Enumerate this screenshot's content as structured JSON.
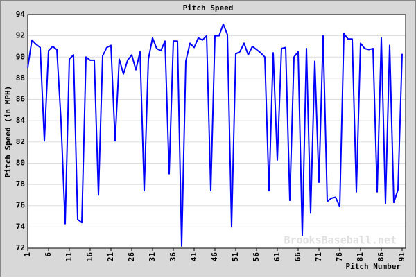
{
  "chart_data": {
    "type": "line",
    "title": "Pitch Speed",
    "x_label": "Pitch Number",
    "y_label": "Pitch Speed (in MPH)",
    "watermark": "BrooksBaseball.net",
    "x": [
      1,
      2,
      3,
      4,
      5,
      6,
      7,
      8,
      9,
      10,
      11,
      12,
      13,
      14,
      15,
      16,
      17,
      18,
      19,
      20,
      21,
      22,
      23,
      24,
      25,
      26,
      27,
      28,
      29,
      30,
      31,
      32,
      33,
      34,
      35,
      36,
      37,
      38,
      39,
      40,
      41,
      42,
      43,
      44,
      45,
      46,
      47,
      48,
      49,
      50,
      51,
      52,
      53,
      54,
      55,
      56,
      57,
      58,
      59,
      60,
      61,
      62,
      63,
      64,
      65,
      66,
      67,
      68,
      69,
      70,
      71,
      72,
      73,
      74,
      75,
      76,
      77,
      78,
      79,
      80,
      81,
      82,
      83,
      84,
      85,
      86,
      87,
      88,
      89,
      90,
      91
    ],
    "series": [
      {
        "name": "Pitch Speed",
        "color": "#0000ff",
        "values": [
          89.0,
          91.6,
          91.2,
          90.9,
          82.1,
          90.6,
          91.0,
          90.7,
          84.0,
          74.3,
          89.8,
          90.2,
          74.7,
          74.4,
          90.0,
          89.7,
          89.7,
          77.0,
          90.1,
          90.9,
          91.1,
          82.1,
          89.8,
          88.4,
          89.7,
          90.2,
          88.8,
          90.5,
          77.4,
          89.8,
          91.8,
          90.8,
          90.6,
          91.5,
          79.0,
          91.5,
          91.5,
          72.2,
          89.6,
          91.3,
          90.9,
          91.8,
          91.6,
          92.0,
          77.4,
          92.0,
          92.0,
          93.1,
          92.1,
          74.0,
          90.3,
          90.5,
          91.3,
          90.2,
          91.0,
          90.7,
          90.4,
          90.0,
          77.4,
          90.4,
          80.3,
          90.8,
          90.9,
          76.5,
          90.0,
          90.5,
          73.2,
          90.8,
          75.3,
          89.6,
          78.2,
          92.0,
          76.4,
          76.7,
          76.8,
          75.9,
          92.2,
          91.7,
          91.7,
          77.3,
          91.3,
          90.8,
          90.7,
          90.8,
          77.3,
          91.8,
          76.2,
          91.1,
          76.3,
          77.5,
          90.3
        ]
      }
    ],
    "xlim": [
      1,
      91
    ],
    "xticks": [
      1,
      6,
      11,
      16,
      21,
      26,
      31,
      36,
      41,
      46,
      51,
      56,
      61,
      66,
      71,
      76,
      81,
      86,
      91
    ],
    "ylim": [
      72,
      94
    ],
    "yticks": [
      72,
      74,
      76,
      78,
      80,
      82,
      84,
      86,
      88,
      90,
      92,
      94
    ],
    "grid": true
  }
}
